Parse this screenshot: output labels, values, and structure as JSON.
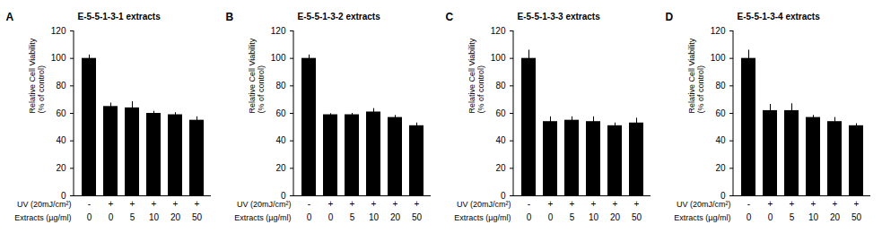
{
  "chart_data": [
    {
      "type": "bar",
      "panel_label": "A",
      "title": "E-5-5-1-3-1 extracts",
      "y_label": "Relative Cell Viability\n(% of control)",
      "row_labels": [
        "UV (20mJ/cm²)",
        "Extracts (µg/ml)"
      ],
      "uv": [
        "-",
        "+",
        "+",
        "+",
        "+",
        "+"
      ],
      "categories": [
        "0",
        "0",
        "5",
        "10",
        "20",
        "50"
      ],
      "values": [
        100,
        65,
        64,
        60,
        59,
        55
      ],
      "errors": [
        2.5,
        2.5,
        4.5,
        1.5,
        1.5,
        2.5
      ],
      "color": "#000000",
      "ylim": [
        0,
        120
      ],
      "yticks": [
        0,
        20,
        40,
        60,
        80,
        100,
        120
      ],
      "grid": false
    },
    {
      "type": "bar",
      "panel_label": "B",
      "title": "E-5-5-1-3-2 extracts",
      "y_label": "Relative Cell Viability\n(% of control)",
      "row_labels": [
        "UV (20mJ/cm²)",
        "Extracts (µg/ml)"
      ],
      "uv": [
        "-",
        "+",
        "+",
        "+",
        "+",
        "+"
      ],
      "categories": [
        "0",
        "0",
        "5",
        "10",
        "20",
        "50"
      ],
      "values": [
        100,
        59,
        59,
        61,
        57,
        51
      ],
      "errors": [
        2.5,
        0.8,
        1,
        2.5,
        1.5,
        2
      ],
      "color": "#000000",
      "ylim": [
        0,
        120
      ],
      "yticks": [
        0,
        20,
        40,
        60,
        80,
        100,
        120
      ],
      "grid": false
    },
    {
      "type": "bar",
      "panel_label": "C",
      "title": "E-5-5-1-3-3 extracts",
      "y_label": "Relative Cell Viability\n(% of control)",
      "row_labels": [
        "UV (20mJ/cm²)",
        "Extracts (µg/ml)"
      ],
      "uv": [
        "-",
        "+",
        "+",
        "+",
        "+",
        "+"
      ],
      "categories": [
        "0",
        "0",
        "5",
        "10",
        "20",
        "50"
      ],
      "values": [
        100,
        54,
        55,
        54,
        51,
        53
      ],
      "errors": [
        6,
        3.5,
        2.5,
        3.5,
        2,
        3.5
      ],
      "color": "#000000",
      "ylim": [
        0,
        120
      ],
      "yticks": [
        0,
        20,
        40,
        60,
        80,
        100,
        120
      ],
      "grid": false
    },
    {
      "type": "bar",
      "panel_label": "D",
      "title": "E-5-5-1-3-4 extracts",
      "y_label": "Relative Cell Viability\n(% of control)",
      "row_labels": [
        "UV (20mJ/cm²)",
        "Extracts (µg/ml)"
      ],
      "uv": [
        "-",
        "+",
        "+",
        "+",
        "+",
        "+"
      ],
      "categories": [
        "0",
        "0",
        "5",
        "10",
        "20",
        "50"
      ],
      "values": [
        100,
        62,
        62,
        57,
        54,
        51
      ],
      "errors": [
        6,
        4.5,
        5,
        1.5,
        3,
        1.5
      ],
      "color": "#000000",
      "ylim": [
        0,
        120
      ],
      "yticks": [
        0,
        20,
        40,
        60,
        80,
        100,
        120
      ],
      "grid": false
    }
  ]
}
